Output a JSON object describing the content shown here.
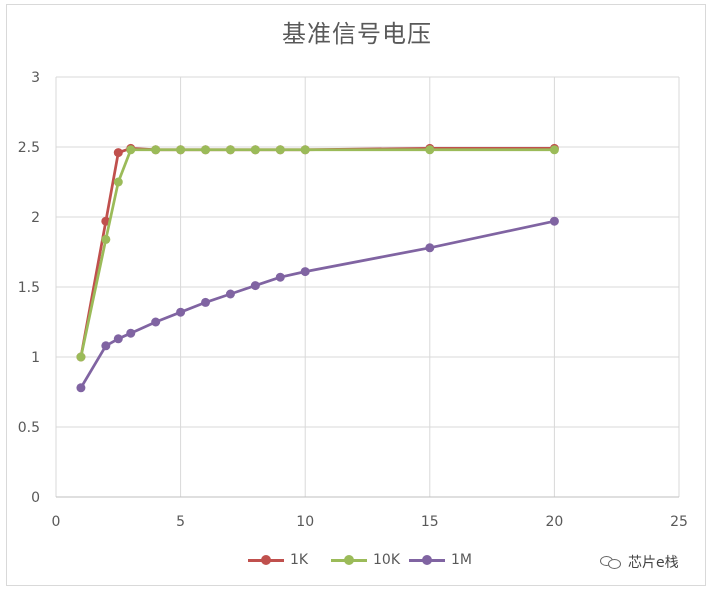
{
  "chart_data": {
    "type": "line",
    "title": "基准信号电压",
    "xlabel": "",
    "ylabel": "",
    "xlim": [
      0,
      25
    ],
    "ylim": [
      0,
      3
    ],
    "x_ticks": [
      0,
      5,
      10,
      15,
      20,
      25
    ],
    "y_ticks": [
      0,
      0.5,
      1,
      1.5,
      2,
      2.5,
      3
    ],
    "x_tick_labels": [
      "0",
      "5",
      "10",
      "15",
      "20",
      "25"
    ],
    "y_tick_labels": [
      "0",
      "0.5",
      "1",
      "1.5",
      "2",
      "2.5",
      "3"
    ],
    "grid": true,
    "legend_position": "bottom",
    "series": [
      {
        "name": "1K",
        "color": "#c0504d",
        "x": [
          1,
          2,
          2.5,
          3,
          4,
          5,
          6,
          7,
          8,
          9,
          10,
          15,
          20
        ],
        "y": [
          1.0,
          1.97,
          2.46,
          2.49,
          2.48,
          2.48,
          2.48,
          2.48,
          2.48,
          2.48,
          2.48,
          2.49,
          2.49
        ]
      },
      {
        "name": "10K",
        "color": "#9bbb59",
        "x": [
          1,
          2,
          2.5,
          3,
          4,
          5,
          6,
          7,
          8,
          9,
          10,
          15,
          20
        ],
        "y": [
          1.0,
          1.84,
          2.25,
          2.48,
          2.48,
          2.48,
          2.48,
          2.48,
          2.48,
          2.48,
          2.48,
          2.48,
          2.48
        ]
      },
      {
        "name": "1M",
        "color": "#8064a2",
        "x": [
          1,
          2,
          2.5,
          3,
          4,
          5,
          6,
          7,
          8,
          9,
          10,
          15,
          20
        ],
        "y": [
          0.78,
          1.08,
          1.13,
          1.17,
          1.25,
          1.32,
          1.39,
          1.45,
          1.51,
          1.57,
          1.61,
          1.78,
          1.97
        ]
      }
    ]
  },
  "watermark": {
    "text": "芯片e栈",
    "icon": "wechat-icon"
  }
}
